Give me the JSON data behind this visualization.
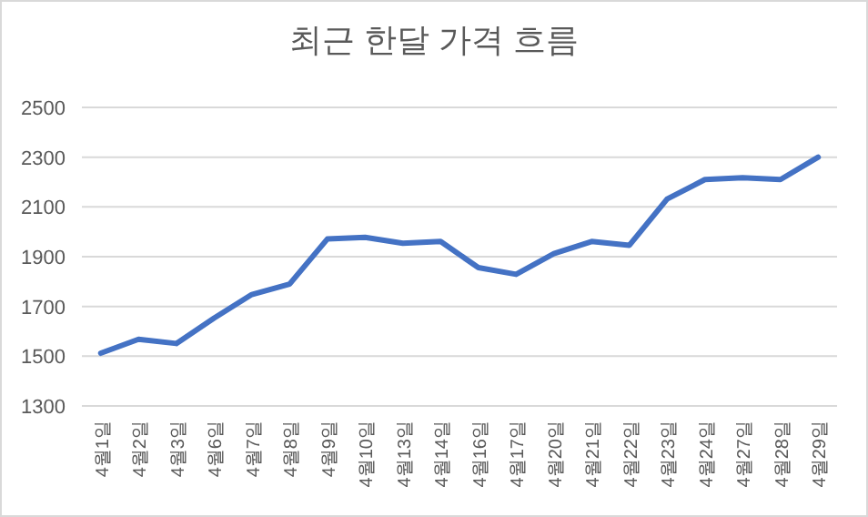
{
  "chart_data": {
    "type": "line",
    "title": "최근 한달 가격 흐름",
    "categories": [
      "4월1일",
      "4월2일",
      "4월3일",
      "4월6일",
      "4월7일",
      "4월8일",
      "4월9일",
      "4월10일",
      "4월13일",
      "4월14일",
      "4월16일",
      "4월17일",
      "4월20일",
      "4월21일",
      "4월22일",
      "4월23일",
      "4월24일",
      "4월27일",
      "4월28일",
      "4월29일"
    ],
    "series": [
      {
        "color": "#4472c4",
        "values": [
          1512,
          1568,
          1551,
          1653,
          1748,
          1790,
          1971,
          1978,
          1954,
          1961,
          1856,
          1829,
          1912,
          1961,
          1946,
          2132,
          2210,
          2217,
          2210,
          2300
        ]
      }
    ],
    "ylim": [
      1300,
      2500
    ],
    "yticks": [
      1300,
      1500,
      1700,
      1900,
      2100,
      2300,
      2500
    ],
    "grid": "y",
    "marker": "none",
    "line_style": "solid"
  }
}
